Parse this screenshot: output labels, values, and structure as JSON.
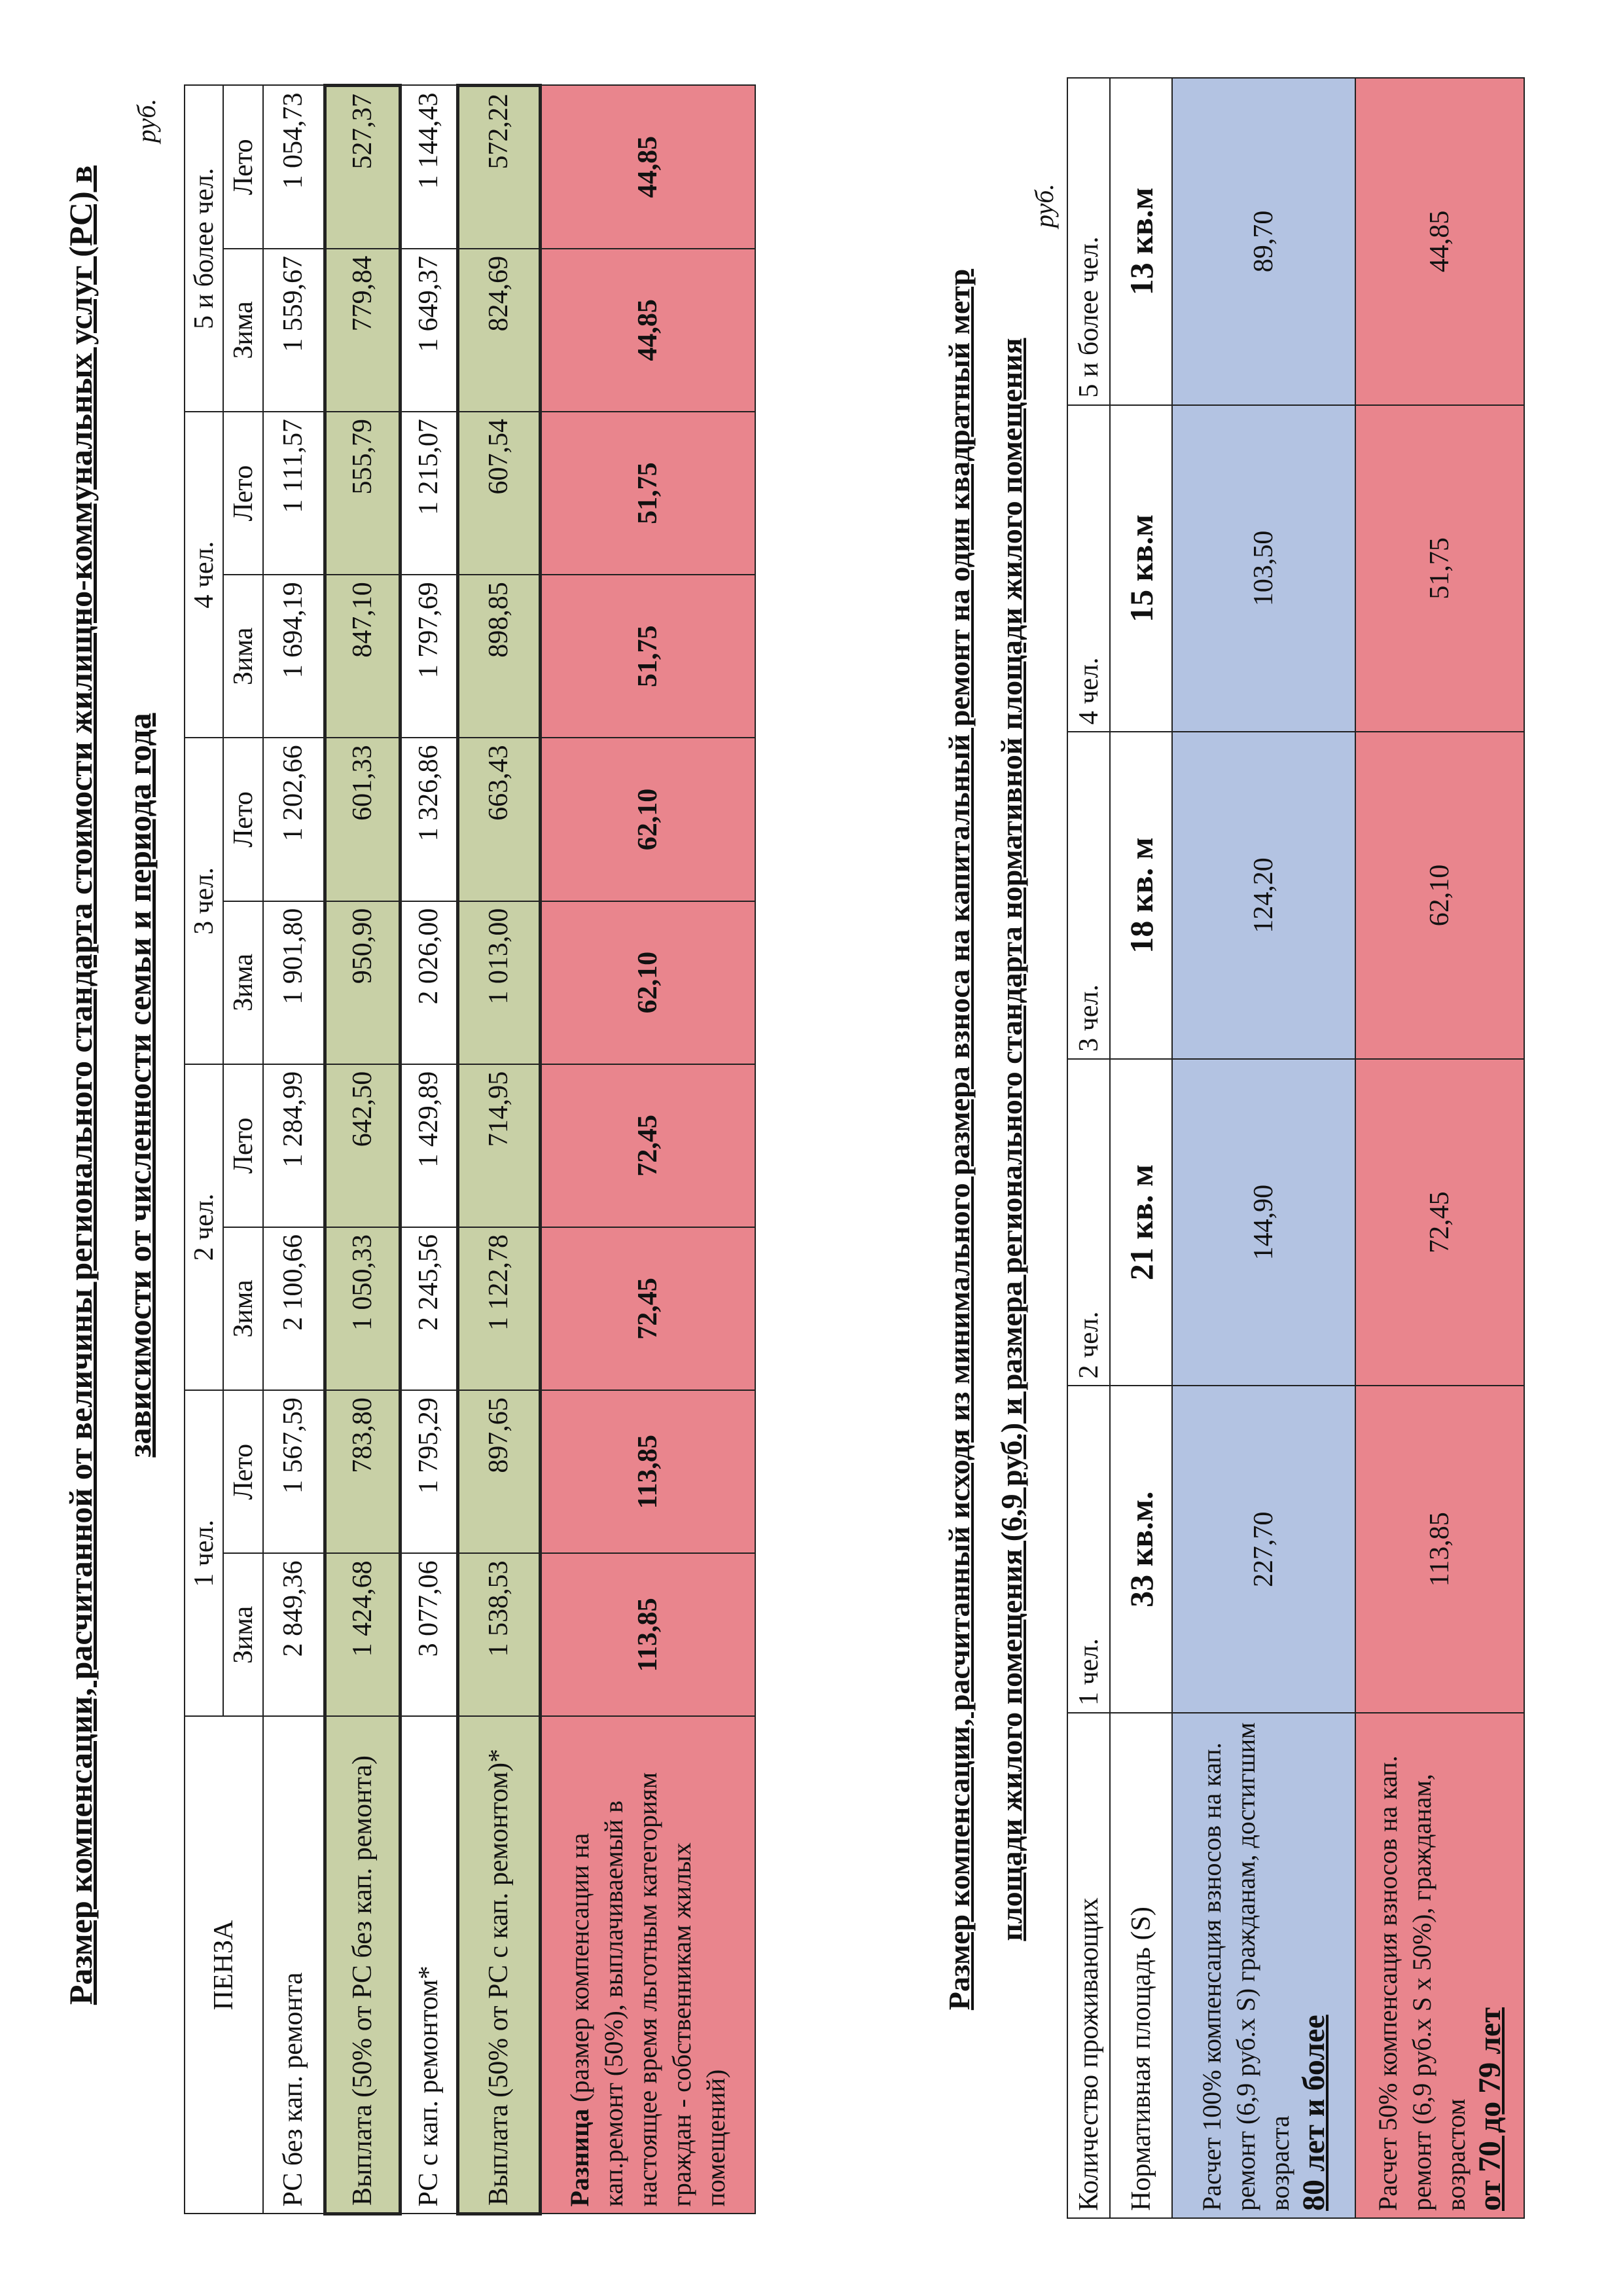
{
  "title1": {
    "line1": "Размер компенсации, расчитанной от величины регионального стандарта стоимости жилищно-коммунальных услуг (РС) в",
    "line2": "зависимости от численности семьи и периода года"
  },
  "table1": {
    "unit": "руб.",
    "city": "ПЕНЗА",
    "groups": [
      "1 чел.",
      "2 чел.",
      "3 чел.",
      "4 чел.",
      "5 и более чел."
    ],
    "season_winter": "Зима",
    "season_summer": "Лето",
    "rows": [
      {
        "label": "РС без кап. ремонта",
        "values": [
          "2 849,36",
          "1 567,59",
          "2 100,66",
          "1 284,99",
          "1 901,80",
          "1 202,66",
          "1 694,19",
          "1 111,57",
          "1 559,67",
          "1 054,73"
        ]
      },
      {
        "label": "Выплата (50% от РС без кап. ремонта)",
        "values": [
          "1 424,68",
          "783,80",
          "1 050,33",
          "642,50",
          "950,90",
          "601,33",
          "847,10",
          "555,79",
          "779,84",
          "527,37"
        ]
      },
      {
        "label": "РС с кап. ремонтом*",
        "values": [
          "3 077,06",
          "1 795,29",
          "2 245,56",
          "1 429,89",
          "2 026,00",
          "1 326,86",
          "1 797,69",
          "1 215,07",
          "1 649,37",
          "1 144,43"
        ]
      },
      {
        "label": "Выплата (50% от РС с кап. ремонтом)*",
        "values": [
          "1 538,53",
          "897,65",
          "1 122,78",
          "714,95",
          "1 013,00",
          "663,43",
          "898,85",
          "607,54",
          "824,69",
          "572,22"
        ]
      }
    ],
    "diff": {
      "label_bold": "Разница",
      "label_rest": " (размер компенсации на кап.ремонт (50%), выплачиваемый в настоящее время льготным категориям граждан - собственникам жилых помещений)",
      "values": [
        "113,85",
        "113,85",
        "72,45",
        "72,45",
        "62,10",
        "62,10",
        "51,75",
        "51,75",
        "44,85",
        "44,85"
      ]
    }
  },
  "title2": {
    "line1": "Размер компенсации, расчитанный исходя из минимального размера взноса на капитальный ремонт на один квадратный метр",
    "line2": "площади жилого помещения (6,9 руб.) и размера регионального стандарта нормативной площади жилого помещения"
  },
  "table2": {
    "unit": "руб.",
    "header_label": "Количество проживающих",
    "groups": [
      "1 чел.",
      "2 чел.",
      "3 чел.",
      "4 чел.",
      "5 и более чел."
    ],
    "area_label": "Нормативная площадь (S)",
    "areas": [
      "33 кв.м.",
      "21 кв. м",
      "18 кв. м",
      "15 кв.м",
      "13 кв.м"
    ],
    "full": {
      "label": "Расчет 100% компенсация взносов на кап. ремонт (6,9 руб.х S) гражданам, достигшим возраста",
      "age": "80 лет и более",
      "values": [
        "227,70",
        "144,90",
        "124,20",
        "103,50",
        "89,70"
      ]
    },
    "half": {
      "label": "Расчет 50% компенсация взносов на кап. ремонт (6,9 руб.х S х 50%), гражданам, возрастом",
      "age": "от  70 до 79 лет",
      "values": [
        "113,85",
        "72,45",
        "62,10",
        "51,75",
        "44,85"
      ]
    }
  },
  "colors": {
    "green": "#c8d0a6",
    "red": "#e9858d",
    "blue": "#b3c3e2"
  }
}
